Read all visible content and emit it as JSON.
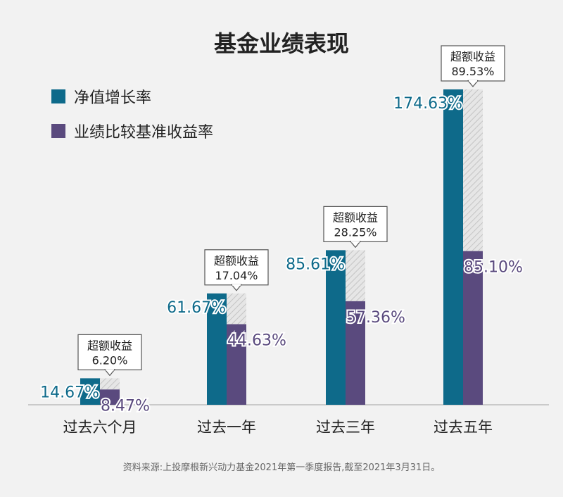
{
  "chart_data": {
    "type": "bar",
    "title": "基金业绩表现",
    "categories": [
      "过去六个月",
      "过去一年",
      "过去三年",
      "过去五年"
    ],
    "series": [
      {
        "name": "净值增长率",
        "values": [
          14.67,
          61.67,
          85.61,
          174.63
        ],
        "labels": [
          "14.67%",
          "61.67%",
          "85.61%",
          "174.63%"
        ]
      },
      {
        "name": "业绩比较基准收益率",
        "values": [
          8.47,
          44.63,
          57.36,
          85.1
        ],
        "labels": [
          "8.47%",
          "44.63%",
          "57.36%",
          "85.10%"
        ]
      }
    ],
    "excess": {
      "label": "超额收益",
      "values": [
        6.2,
        17.04,
        28.25,
        89.53
      ],
      "labels": [
        "6.20%",
        "17.04%",
        "28.25%",
        "89.53%"
      ]
    },
    "ylim": [
      0,
      174.63
    ],
    "xlabel": "",
    "ylabel": "",
    "grid": false,
    "legend_position": "top-left",
    "colors": {
      "nav": "#0e6a8a",
      "benchmark": "#5a4a7e",
      "excess_hatch": "#d9d9d9",
      "background": "#f2f2f2",
      "axis": "#bdbdbd"
    },
    "source_note": "资料来源:上投摩根新兴动力基金2021年第一季度报告,截至2021年3月31日。"
  }
}
